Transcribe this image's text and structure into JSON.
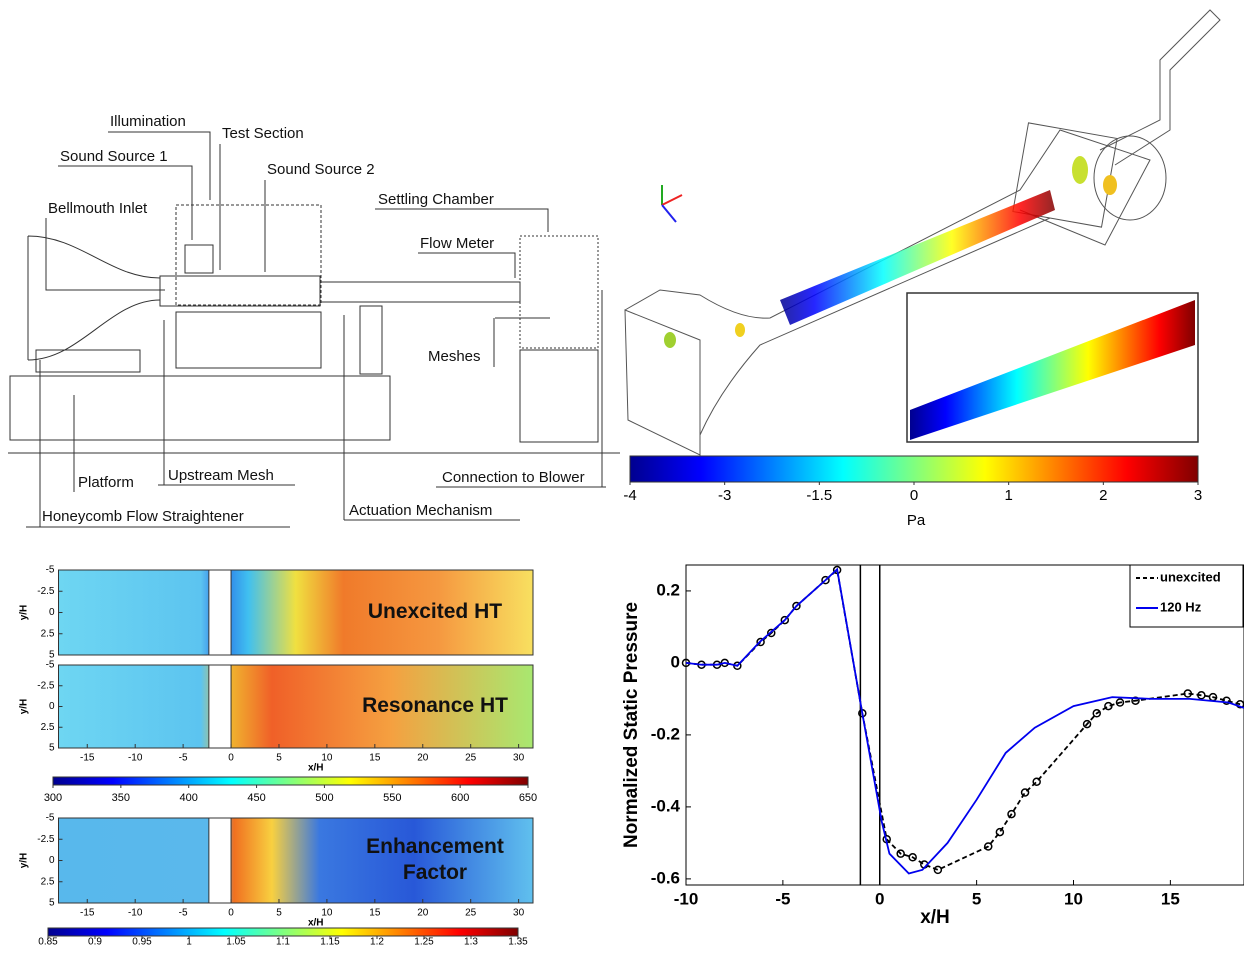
{
  "diagram": {
    "labels": [
      "Illumination",
      "Test Section",
      "Sound Source 1",
      "Sound Source 2",
      "Bellmouth Inlet",
      "Settling Chamber",
      "Flow Meter",
      "Meshes",
      "Platform",
      "Upstream Mesh",
      "Connection to Blower",
      "Honeycomb Flow Straightener",
      "Actuation Mechanism"
    ]
  },
  "chart_data": [
    {
      "type": "colorbar",
      "label": "Pa",
      "ticks": [
        -4,
        -3,
        -1.5,
        0,
        1,
        2,
        3
      ]
    },
    {
      "type": "heatmap",
      "title": "Unexcited HT",
      "ylabel": "y/H",
      "xlim": [
        -18,
        31.5
      ],
      "ylim": [
        -5,
        5
      ],
      "yticks": [
        -5,
        -2.5,
        0,
        2.5,
        5
      ]
    },
    {
      "type": "heatmap",
      "title": "Resonance HT",
      "xlabel": "x/H",
      "ylabel": "y/H",
      "xlim": [
        -18,
        31.5
      ],
      "ylim": [
        -5,
        5
      ],
      "xticks": [
        -15,
        -10,
        -5,
        0,
        5,
        10,
        15,
        20,
        25,
        30
      ],
      "yticks": [
        -5,
        -2.5,
        0,
        2.5,
        5
      ]
    },
    {
      "type": "colorbar",
      "ticks": [
        300,
        350,
        400,
        450,
        500,
        550,
        600,
        650
      ]
    },
    {
      "type": "heatmap",
      "title": [
        "Enhancement",
        "Factor"
      ],
      "xlabel": "x/H",
      "ylabel": "y/H",
      "xlim": [
        -18,
        31.5
      ],
      "ylim": [
        -5,
        5
      ],
      "xticks": [
        -15,
        -10,
        -5,
        0,
        5,
        10,
        15,
        20,
        25,
        30
      ],
      "yticks": [
        -5,
        -2.5,
        0,
        2.5,
        5
      ]
    },
    {
      "type": "colorbar",
      "ticks": [
        0.85,
        0.9,
        0.95,
        1,
        1.05,
        1.1,
        1.15,
        1.2,
        1.25,
        1.3,
        1.35
      ]
    },
    {
      "type": "line",
      "xlabel": "x/H",
      "ylabel": "Normalized Static Pressure",
      "xlim": [
        -10,
        18.8
      ],
      "ylim": [
        -0.617,
        0.272
      ],
      "xticks": [
        -10,
        -5,
        0,
        5,
        10,
        15
      ],
      "yticks": [
        0.2,
        0,
        -0.2,
        -0.4,
        -0.6
      ],
      "vlines": [
        -1,
        0
      ],
      "legend": "upper right",
      "series": [
        {
          "name": "unexcited",
          "color": "#000000",
          "dashed": true,
          "markers": true,
          "x": [
            -10,
            -9.2,
            -8.4,
            -8,
            -7.35,
            -6.15,
            -5.6,
            -4.9,
            -4.3,
            -2.8,
            -2.2,
            -0.9,
            0.36,
            1.08,
            1.7,
            2.3,
            3.0,
            5.6,
            6.2,
            6.8,
            7.5,
            8.1,
            10.7,
            11.2,
            11.8,
            12.4,
            13.2,
            15.9,
            16.6,
            17.2,
            17.9,
            18.6
          ],
          "values": [
            0,
            -0.005,
            -0.005,
            0,
            -0.008,
            0.058,
            0.083,
            0.119,
            0.158,
            0.23,
            0.258,
            -0.14,
            -0.49,
            -0.53,
            -0.54,
            -0.56,
            -0.575,
            -0.51,
            -0.47,
            -0.42,
            -0.36,
            -0.33,
            -0.17,
            -0.14,
            -0.12,
            -0.11,
            -0.105,
            -0.085,
            -0.09,
            -0.095,
            -0.105,
            -0.115
          ]
        },
        {
          "name": "120 Hz",
          "color": "#0000ee",
          "dashed": false,
          "markers": false,
          "x": [
            -10,
            -9.2,
            -8.4,
            -8,
            -7.35,
            -6.2,
            -4.9,
            -4.3,
            -2.8,
            -2.2,
            -0.9,
            0.1,
            0.5,
            1.5,
            2.2,
            3.5,
            5,
            6.5,
            8,
            10,
            12,
            14,
            16,
            18,
            18.8
          ],
          "values": [
            0,
            -0.005,
            -0.005,
            0,
            -0.008,
            0.058,
            0.119,
            0.158,
            0.23,
            0.26,
            -0.14,
            -0.44,
            -0.53,
            -0.585,
            -0.575,
            -0.5,
            -0.38,
            -0.25,
            -0.18,
            -0.12,
            -0.095,
            -0.1,
            -0.1,
            -0.11,
            -0.125
          ]
        }
      ]
    }
  ]
}
